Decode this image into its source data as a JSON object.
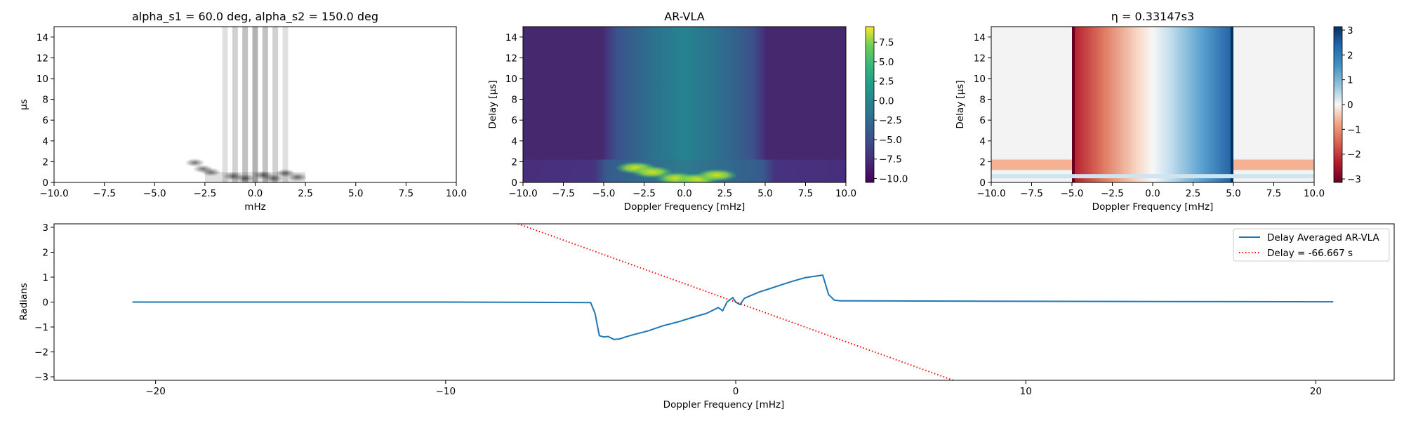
{
  "chart_data": [
    {
      "type": "heatmap",
      "title": "alpha_s1 = 60.0 deg, alpha_s2 = 150.0 deg",
      "xlabel": "mHz",
      "ylabel": "µs",
      "xlim": [
        -10,
        10
      ],
      "ylim": [
        0,
        15
      ],
      "xticks": [
        "−10.0",
        "−7.5",
        "−5.0",
        "−2.5",
        "0.0",
        "2.5",
        "5.0",
        "7.5",
        "10.0"
      ],
      "yticks": [
        "0",
        "2",
        "4",
        "6",
        "8",
        "10",
        "12",
        "14"
      ],
      "colormap": "greys",
      "features": {
        "bright_columns_x": [
          -1.5,
          -1.0,
          -0.5,
          0.0,
          0.5,
          1.0,
          1.5
        ],
        "spots": [
          {
            "x": -3.0,
            "y": 1.9
          },
          {
            "x": -2.6,
            "y": 1.3
          },
          {
            "x": -2.2,
            "y": 1.0
          },
          {
            "x": -1.1,
            "y": 0.6
          },
          {
            "x": -0.5,
            "y": 0.4
          },
          {
            "x": 0.4,
            "y": 0.7
          },
          {
            "x": 0.9,
            "y": 0.4
          },
          {
            "x": 1.5,
            "y": 0.9
          },
          {
            "x": 2.1,
            "y": 0.5
          }
        ]
      }
    },
    {
      "type": "heatmap",
      "title": "AR-VLA",
      "xlabel": "Doppler Frequency [mHz]",
      "ylabel": "Delay [$\\mu s$]",
      "xlim": [
        -10,
        10
      ],
      "ylim": [
        0,
        15
      ],
      "xticks": [
        "−10.0",
        "−7.5",
        "−5.0",
        "−2.5",
        "0.0",
        "2.5",
        "5.0",
        "7.5",
        "10.0"
      ],
      "yticks": [
        "0",
        "2",
        "4",
        "6",
        "8",
        "10",
        "12",
        "14"
      ],
      "colormap": "viridis",
      "clim": [
        -10.5,
        9.5
      ],
      "colorbar_ticks": [
        "7.5",
        "5.0",
        "2.5",
        "0.0",
        "−2.5",
        "−5.0",
        "−7.5",
        "−10.0"
      ],
      "features": {
        "background_value": -9.5,
        "central_band_xrange": [
          -5,
          5
        ],
        "central_band_value": -4.0,
        "low_delay_band_yrange": [
          0,
          2.2
        ],
        "bright_blobs": [
          {
            "x": -3.0,
            "y": 1.4,
            "value": 7.5
          },
          {
            "x": -2.0,
            "y": 1.0,
            "value": 7.0
          },
          {
            "x": -0.5,
            "y": 0.4,
            "value": 8.5
          },
          {
            "x": 0.8,
            "y": 0.3,
            "value": 9.0
          },
          {
            "x": 2.0,
            "y": 0.7,
            "value": 7.5
          }
        ]
      }
    },
    {
      "type": "heatmap",
      "title": "η = 0.33147s3",
      "xlabel": "Doppler Frequency [mHz]",
      "ylabel": "Delay [$\\mu s$]",
      "xlim": [
        -10,
        10
      ],
      "ylim": [
        0,
        15
      ],
      "xticks": [
        "−10.0",
        "−7.5",
        "−5.0",
        "−2.5",
        "0.0",
        "2.5",
        "5.0",
        "7.5",
        "10.0"
      ],
      "yticks": [
        "0",
        "2",
        "4",
        "6",
        "8",
        "10",
        "12",
        "14"
      ],
      "colormap": "RdBu",
      "clim": [
        -3.14,
        3.14
      ],
      "colorbar_ticks": [
        "3",
        "2",
        "1",
        "0",
        "−1",
        "−2",
        "−3"
      ],
      "features": {
        "phase_gradient_xrange": [
          -5,
          5
        ],
        "phase_range": [
          -3.0,
          3.0
        ],
        "low_delay_band_yrange": [
          0,
          2.2
        ],
        "outside_value": 0.0
      }
    },
    {
      "type": "line",
      "title": "",
      "xlabel": "Doppler Frequency [mHz]",
      "ylabel": "Radians",
      "xlim": [
        -23.5,
        22.7
      ],
      "ylim": [
        -3.14,
        3.14
      ],
      "xticks": [
        "−20",
        "−10",
        "0",
        "10",
        "20"
      ],
      "yticks": [
        "3",
        "2",
        "1",
        "0",
        "−1",
        "−2",
        "−3"
      ],
      "legend_position": "top-right",
      "series": [
        {
          "name": "Delay Averaged  AR-VLA",
          "color": "#1f77b4",
          "style": "solid",
          "x": [
            -20.8,
            -10,
            -5,
            -4.85,
            -4.7,
            -4.55,
            -4.4,
            -4.2,
            -4.0,
            -3.8,
            -3.5,
            -3.0,
            -2.5,
            -2.0,
            -1.5,
            -1.0,
            -0.6,
            -0.45,
            -0.3,
            -0.1,
            0.0,
            0.15,
            0.3,
            0.5,
            0.8,
            1.2,
            1.6,
            2.0,
            2.4,
            2.8,
            3.0,
            3.2,
            3.4,
            3.6,
            4.0,
            10,
            20.6
          ],
          "y": [
            0.0,
            0.0,
            -0.02,
            -0.45,
            -1.35,
            -1.4,
            -1.38,
            -1.5,
            -1.48,
            -1.4,
            -1.3,
            -1.15,
            -0.95,
            -0.8,
            -0.62,
            -0.45,
            -0.22,
            -0.35,
            0.0,
            0.18,
            0.0,
            -0.1,
            0.15,
            0.25,
            0.4,
            0.55,
            0.7,
            0.85,
            0.98,
            1.05,
            1.08,
            0.3,
            0.08,
            0.05,
            0.05,
            0.03,
            0.01
          ]
        },
        {
          "name": "Delay = -66.667 s",
          "color": "#ff0000",
          "style": "dotted",
          "x": [
            -7.5,
            7.5
          ],
          "y": [
            3.14,
            -3.14
          ]
        }
      ]
    }
  ]
}
